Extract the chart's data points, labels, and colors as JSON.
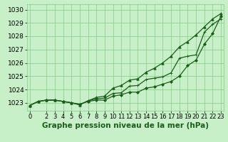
{
  "bg_color": "#c8f0c8",
  "grid_color": "#88c888",
  "line_color": "#1a5c1a",
  "marker_color": "#1a5c1a",
  "xlabel": "Graphe pression niveau de la mer (hPa)",
  "xlabel_fontsize": 7.5,
  "ylabel_fontsize": 6.5,
  "tick_fontsize": 6.0,
  "xlim": [
    -0.3,
    23.3
  ],
  "ylim": [
    1022.4,
    1030.4
  ],
  "yticks": [
    1023,
    1024,
    1025,
    1026,
    1027,
    1028,
    1029,
    1030
  ],
  "xticks": [
    0,
    2,
    3,
    4,
    5,
    6,
    7,
    8,
    9,
    10,
    11,
    12,
    13,
    14,
    15,
    16,
    17,
    18,
    19,
    20,
    21,
    22,
    23
  ],
  "series": [
    {
      "x": [
        0,
        1,
        2,
        3,
        4,
        5,
        6,
        7,
        8,
        9,
        10,
        11,
        12,
        13,
        14,
        15,
        16,
        17,
        18,
        19,
        20,
        21,
        22,
        23
      ],
      "y": [
        1022.8,
        1023.1,
        1023.2,
        1023.2,
        1023.1,
        1023.0,
        1022.9,
        1023.1,
        1023.2,
        1023.2,
        1023.5,
        1023.6,
        1023.8,
        1023.8,
        1024.1,
        1024.2,
        1024.4,
        1024.6,
        1025.0,
        1025.8,
        1026.2,
        1027.4,
        1028.2,
        1029.5
      ],
      "marker": "D",
      "markersize": 2.0,
      "linewidth": 0.9
    },
    {
      "x": [
        0,
        1,
        2,
        3,
        4,
        5,
        6,
        7,
        8,
        9,
        10,
        11,
        12,
        13,
        14,
        15,
        16,
        17,
        18,
        19,
        20,
        21,
        22,
        23
      ],
      "y": [
        1022.8,
        1023.1,
        1023.2,
        1023.2,
        1023.1,
        1023.0,
        1022.85,
        1023.15,
        1023.3,
        1023.35,
        1023.7,
        1023.75,
        1024.25,
        1024.3,
        1024.75,
        1024.85,
        1024.95,
        1025.25,
        1026.35,
        1026.5,
        1026.6,
        1028.3,
        1028.9,
        1029.3
      ],
      "marker": "+",
      "markersize": 3.5,
      "linewidth": 0.9
    },
    {
      "x": [
        0,
        1,
        2,
        3,
        4,
        5,
        6,
        7,
        8,
        9,
        10,
        11,
        12,
        13,
        14,
        15,
        16,
        17,
        18,
        19,
        20,
        21,
        22,
        23
      ],
      "y": [
        1022.8,
        1023.1,
        1023.2,
        1023.2,
        1023.1,
        1023.0,
        1022.85,
        1023.15,
        1023.4,
        1023.5,
        1024.1,
        1024.3,
        1024.7,
        1024.8,
        1025.3,
        1025.6,
        1026.0,
        1026.5,
        1027.2,
        1027.6,
        1028.1,
        1028.7,
        1029.3,
        1029.7
      ],
      "marker": "^",
      "markersize": 2.5,
      "linewidth": 0.9
    }
  ]
}
